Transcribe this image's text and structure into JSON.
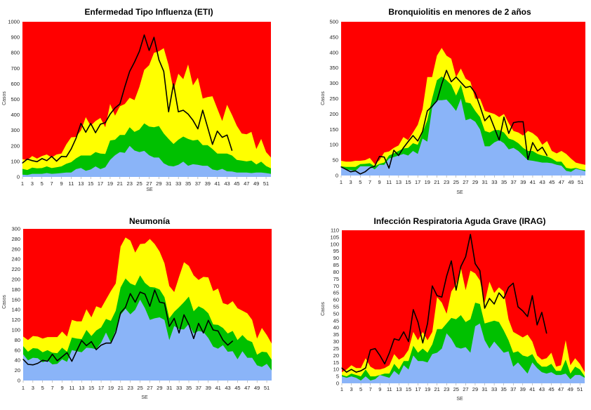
{
  "chart_data": [
    {
      "type": "area",
      "title": "Enfermedad Tipo Influenza (ETI)",
      "xlabel": "SE",
      "ylabel": "Casos",
      "ylim": [
        0,
        1000
      ],
      "y_ticks": [
        "0",
        "100",
        "200",
        "300",
        "400",
        "500",
        "600",
        "700",
        "800",
        "900",
        "1000"
      ],
      "x_ticks": [
        "1",
        "3",
        "5",
        "7",
        "9",
        "11",
        "13",
        "15",
        "17",
        "19",
        "21",
        "23",
        "25",
        "27",
        "29",
        "31",
        "33",
        "35",
        "37",
        "39",
        "41",
        "43",
        "45",
        "47",
        "49",
        "51"
      ],
      "weeks": 52,
      "colors": {
        "background": "#ff0000",
        "upper": "#ffff00",
        "middle": "#00c000",
        "lower": "#8ab4f8",
        "line": "#000000"
      },
      "series": [
        {
          "key": "upper",
          "values": [
            115,
            108,
            135,
            118,
            135,
            145,
            125,
            145,
            150,
            210,
            255,
            258,
            300,
            385,
            330,
            360,
            380,
            320,
            470,
            395,
            455,
            470,
            510,
            495,
            580,
            690,
            720,
            800,
            810,
            830,
            720,
            560,
            665,
            630,
            725,
            590,
            640,
            505,
            515,
            520,
            440,
            360,
            465,
            400,
            330,
            280,
            275,
            290,
            180,
            245,
            160,
            125
          ]
        },
        {
          "key": "middle",
          "values": [
            52,
            45,
            60,
            55,
            57,
            68,
            57,
            62,
            68,
            85,
            95,
            120,
            138,
            138,
            138,
            160,
            150,
            148,
            235,
            240,
            270,
            270,
            320,
            290,
            305,
            345,
            325,
            320,
            328,
            280,
            245,
            212,
            240,
            260,
            245,
            235,
            240,
            205,
            205,
            180,
            150,
            150,
            150,
            138,
            110,
            105,
            100,
            105,
            80,
            98,
            70,
            55
          ]
        },
        {
          "key": "lower",
          "values": [
            15,
            12,
            20,
            20,
            20,
            25,
            20,
            22,
            25,
            28,
            28,
            50,
            58,
            40,
            48,
            68,
            50,
            62,
            110,
            140,
            160,
            155,
            200,
            170,
            160,
            168,
            140,
            125,
            125,
            88,
            72,
            68,
            78,
            98,
            72,
            82,
            78,
            72,
            72,
            48,
            42,
            52,
            36,
            35,
            28,
            28,
            28,
            25,
            28,
            28,
            25,
            20
          ]
        },
        {
          "key": "current",
          "values": [
            90,
            115,
            105,
            98,
            118,
            105,
            132,
            102,
            132,
            130,
            180,
            250,
            345,
            288,
            345,
            285,
            340,
            350,
            405,
            445,
            470,
            580,
            680,
            740,
            810,
            915,
            815,
            900,
            755,
            680,
            420,
            600,
            420,
            430,
            405,
            365,
            310,
            430,
            320,
            210,
            295,
            255,
            270,
            170
          ]
        }
      ]
    },
    {
      "type": "area",
      "title": "Bronquiolitis en menores de 2 años",
      "xlabel": "SE",
      "ylabel": "Casos",
      "ylim": [
        0,
        500
      ],
      "y_ticks": [
        "0",
        "50",
        "100",
        "150",
        "200",
        "250",
        "300",
        "350",
        "400",
        "450",
        "500"
      ],
      "x_ticks": [
        "1",
        "3",
        "5",
        "7",
        "9",
        "11",
        "13",
        "15",
        "17",
        "19",
        "21",
        "23",
        "25",
        "27",
        "29",
        "31",
        "33",
        "35",
        "37",
        "39",
        "41",
        "43",
        "45",
        "47",
        "49",
        "51"
      ],
      "weeks": 52,
      "colors": {
        "background": "#ff0000",
        "upper": "#ffff00",
        "middle": "#00c000",
        "lower": "#8ab4f8",
        "line": "#000000"
      },
      "series": [
        {
          "key": "upper",
          "values": [
            48,
            45,
            45,
            48,
            48,
            50,
            57,
            37,
            50,
            75,
            78,
            90,
            98,
            125,
            115,
            140,
            165,
            215,
            320,
            320,
            390,
            415,
            390,
            380,
            320,
            348,
            315,
            305,
            250,
            250,
            210,
            205,
            200,
            190,
            200,
            170,
            145,
            140,
            130,
            145,
            138,
            125,
            100,
            112,
            80,
            72,
            80,
            70,
            55,
            42,
            38,
            35
          ]
        },
        {
          "key": "middle",
          "values": [
            30,
            28,
            28,
            28,
            37,
            38,
            40,
            30,
            38,
            42,
            65,
            72,
            80,
            88,
            90,
            105,
            100,
            140,
            180,
            250,
            310,
            322,
            310,
            295,
            260,
            295,
            238,
            235,
            210,
            190,
            145,
            140,
            148,
            148,
            140,
            120,
            115,
            105,
            90,
            80,
            80,
            70,
            65,
            62,
            55,
            45,
            45,
            25,
            22,
            25,
            20,
            18
          ]
        },
        {
          "key": "lower",
          "values": [
            30,
            20,
            18,
            15,
            30,
            30,
            30,
            20,
            35,
            35,
            55,
            60,
            65,
            70,
            65,
            80,
            70,
            120,
            110,
            220,
            245,
            245,
            247,
            230,
            210,
            250,
            180,
            185,
            175,
            150,
            95,
            95,
            108,
            115,
            105,
            85,
            90,
            80,
            65,
            50,
            48,
            45,
            42,
            42,
            40,
            35,
            32,
            15,
            12,
            22,
            18,
            14
          ]
        },
        {
          "key": "current",
          "values": [
            28,
            20,
            12,
            15,
            5,
            12,
            25,
            30,
            62,
            60,
            24,
            82,
            65,
            90,
            110,
            130,
            112,
            143,
            210,
            225,
            243,
            297,
            342,
            305,
            320,
            303,
            286,
            290,
            268,
            225,
            178,
            195,
            155,
            115,
            190,
            137,
            172,
            175,
            175,
            52,
            107,
            80,
            92,
            65
          ]
        }
      ]
    },
    {
      "type": "area",
      "title": "Neumonía",
      "xlabel": "SE",
      "ylabel": "Casos",
      "ylim": [
        0,
        300
      ],
      "y_ticks": [
        "0",
        "20",
        "40",
        "60",
        "80",
        "100",
        "120",
        "140",
        "160",
        "180",
        "200",
        "220",
        "240",
        "260",
        "280",
        "300"
      ],
      "x_ticks": [
        "1",
        "3",
        "5",
        "7",
        "9",
        "11",
        "13",
        "15",
        "17",
        "19",
        "21",
        "23",
        "25",
        "27",
        "29",
        "31",
        "33",
        "35",
        "37",
        "39",
        "41",
        "43",
        "45",
        "47",
        "49",
        "51"
      ],
      "weeks": 52,
      "colors": {
        "background": "#ff0000",
        "upper": "#ffff00",
        "middle": "#00c000",
        "lower": "#8ab4f8",
        "line": "#000000"
      },
      "series": [
        {
          "key": "upper",
          "values": [
            87,
            80,
            88,
            87,
            83,
            86,
            86,
            86,
            97,
            87,
            120,
            117,
            117,
            141,
            125,
            147,
            143,
            160,
            177,
            192,
            265,
            283,
            277,
            253,
            270,
            271,
            280,
            270,
            255,
            232,
            187,
            175,
            205,
            234,
            227,
            208,
            199,
            205,
            204,
            177,
            182,
            153,
            150,
            157,
            143,
            138,
            133,
            120,
            83,
            104,
            90,
            73
          ]
        },
        {
          "key": "middle",
          "values": [
            68,
            57,
            64,
            63,
            56,
            60,
            55,
            54,
            65,
            57,
            85,
            83,
            82,
            100,
            88,
            99,
            105,
            122,
            118,
            138,
            184,
            202,
            192,
            188,
            208,
            193,
            185,
            184,
            180,
            165,
            123,
            136,
            145,
            155,
            166,
            137,
            147,
            142,
            133,
            111,
            110,
            104,
            93,
            98,
            80,
            90,
            80,
            76,
            51,
            57,
            56,
            41
          ]
        },
        {
          "key": "lower",
          "values": [
            52,
            40,
            45,
            44,
            36,
            40,
            32,
            33,
            42,
            37,
            60,
            58,
            56,
            65,
            64,
            62,
            75,
            95,
            75,
            100,
            130,
            142,
            131,
            140,
            160,
            143,
            120,
            123,
            125,
            120,
            80,
            108,
            102,
            101,
            112,
            93,
            98,
            96,
            84,
            67,
            63,
            70,
            57,
            58,
            42,
            58,
            45,
            45,
            30,
            27,
            33,
            20
          ]
        },
        {
          "key": "current",
          "values": [
            42,
            32,
            31,
            34,
            40,
            38,
            52,
            39,
            47,
            55,
            38,
            59,
            79,
            69,
            77,
            61,
            70,
            74,
            74,
            95,
            134,
            145,
            172,
            155,
            175,
            171,
            147,
            179,
            155,
            153,
            107,
            123,
            94,
            130,
            111,
            83,
            113,
            94,
            119,
            100,
            98,
            80,
            70,
            78
          ]
        }
      ]
    },
    {
      "type": "area",
      "title": "Infección Respiratoria Aguda Grave (IRAG)",
      "xlabel": "SE",
      "ylabel": "Casos",
      "ylim": [
        0,
        110
      ],
      "y_ticks": [
        "0",
        "5",
        "10",
        "15",
        "20",
        "25",
        "30",
        "35",
        "40",
        "45",
        "50",
        "55",
        "60",
        "65",
        "70",
        "75",
        "80",
        "85",
        "90",
        "95",
        "100",
        "105",
        "110"
      ],
      "x_ticks": [
        "1",
        "3",
        "5",
        "7",
        "9",
        "11",
        "13",
        "15",
        "17",
        "19",
        "21",
        "23",
        "25",
        "27",
        "29",
        "31",
        "33",
        "35",
        "37",
        "39",
        "41",
        "43",
        "45",
        "47",
        "49",
        "51"
      ],
      "weeks": 52,
      "colors": {
        "background": "#ff0000",
        "upper": "#ffff00",
        "middle": "#00c000",
        "lower": "#8ab4f8",
        "line": "#000000"
      },
      "series": [
        {
          "key": "upper",
          "values": [
            8,
            10,
            13,
            11,
            11,
            18,
            12,
            10,
            10,
            11,
            13,
            21,
            17,
            19,
            24,
            37,
            31,
            37,
            31,
            37,
            62,
            58,
            50,
            66,
            71,
            83,
            67,
            81,
            79,
            74,
            58,
            73,
            65,
            69,
            66,
            46,
            37,
            35,
            33,
            35,
            30,
            20,
            17,
            18,
            22,
            12,
            13,
            31,
            13,
            18,
            14,
            8
          ]
        },
        {
          "key": "middle",
          "values": [
            6,
            5,
            7,
            6,
            5,
            10,
            5,
            5,
            6,
            7,
            7,
            14,
            10,
            16,
            16,
            27,
            22,
            25,
            22,
            28,
            39,
            39,
            43,
            47,
            46,
            49,
            44,
            46,
            58,
            57,
            43,
            44,
            45,
            44,
            38,
            31,
            22,
            23,
            20,
            19,
            21,
            15,
            12,
            12,
            14,
            9,
            9,
            17,
            7,
            12,
            10,
            5
          ]
        },
        {
          "key": "lower",
          "values": [
            5,
            4,
            5,
            4,
            2,
            5,
            2,
            3,
            6,
            5,
            4,
            9,
            6,
            13,
            10,
            20,
            16,
            16,
            15,
            21,
            22,
            25,
            36,
            32,
            26,
            25,
            26,
            22,
            41,
            43,
            31,
            25,
            30,
            26,
            22,
            23,
            12,
            15,
            11,
            7,
            15,
            11,
            8,
            7,
            8,
            6,
            6,
            7,
            3,
            6,
            6,
            4
          ]
        },
        {
          "key": "current",
          "values": [
            11,
            8,
            10,
            8,
            9,
            11,
            24,
            25,
            20,
            14,
            22,
            32,
            31,
            37,
            30,
            53,
            44,
            29,
            43,
            70,
            63,
            62,
            77,
            88,
            67,
            84,
            91,
            107,
            86,
            81,
            54,
            61,
            57,
            65,
            61,
            69,
            72,
            55,
            52,
            48,
            63,
            42,
            51,
            36
          ]
        }
      ]
    }
  ]
}
